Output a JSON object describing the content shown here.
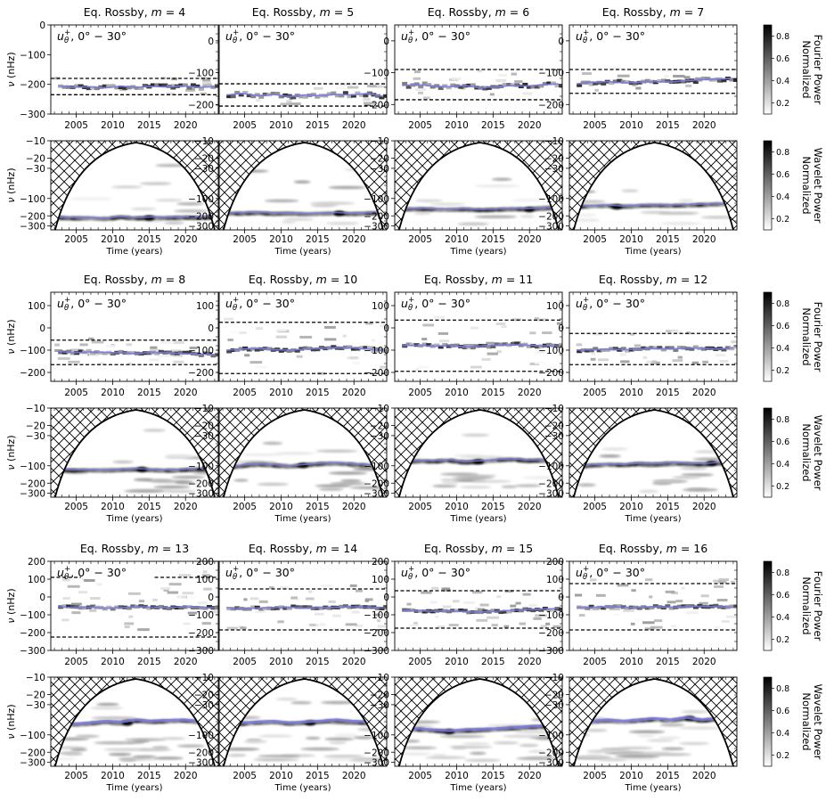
{
  "figure": {
    "panel_title_prefix": "Eq. Rossby, ",
    "m_symbol": "m",
    "m_equals": " = ",
    "inset_label": "u",
    "inset_sub": "θ",
    "inset_sup": "+",
    "inset_range": ", 0° − 30°",
    "ylabel": "ν (nHz)",
    "xlabel": "Time (years)",
    "fourier_colorbar_label": [
      "Normalized",
      "Fourier Power"
    ],
    "wavelet_colorbar_label": [
      "Normalized",
      "Wavelet Power"
    ],
    "colorbar_ticks": [
      "0.8",
      "0.6",
      "0.4",
      "0.2"
    ],
    "colors": {
      "trace": "#7b7bea",
      "dashed": "#000000",
      "hatch": "#000000"
    }
  },
  "chart_data": [
    {
      "type": "heatmap",
      "row": 1,
      "x_ticks": [
        "2005",
        "2010",
        "2015",
        "2020"
      ],
      "xlim": [
        2001.5,
        2024.5
      ],
      "wavelet_y_ticks": [
        "−10",
        "−20",
        "−30",
        "−100",
        "−200",
        "−300"
      ],
      "colorbar_range": [
        0.1,
        0.9
      ],
      "panels": [
        {
          "m": "4",
          "fourier_y_ticks": [
            "0",
            "−100",
            "−200",
            "−300"
          ],
          "fourier_ylim": [
            -300,
            0
          ],
          "dashed": [
            -180,
            -235
          ],
          "trace": [
            -205,
            -210,
            -208,
            -212,
            -206,
            -210,
            -207,
            -209,
            -205,
            -210,
            -208
          ],
          "wavelet_trace": [
            -210,
            -215,
            -212,
            -220,
            -205,
            -215,
            -210,
            -212,
            -208,
            -210,
            -206
          ],
          "wavelet_blob_year": 2015
        },
        {
          "m": "5",
          "fourier_y_ticks": [
            "0",
            "−100",
            "−200"
          ],
          "fourier_ylim": [
            -230,
            50
          ],
          "dashed": [
            -135,
            -205
          ],
          "trace": [
            -170,
            -165,
            -172,
            -168,
            -175,
            -170,
            -172,
            -168,
            -170,
            -165,
            -175
          ],
          "wavelet_trace": [
            -175,
            -178,
            -172,
            -180,
            -176,
            -182,
            -178,
            -175,
            -180,
            -176,
            -174
          ],
          "wavelet_blob_year": 2018
        },
        {
          "m": "6",
          "fourier_y_ticks": [
            "0",
            "−100",
            "−200"
          ],
          "fourier_ylim": [
            -230,
            50
          ],
          "dashed": [
            -90,
            -185
          ],
          "trace": [
            -140,
            -138,
            -142,
            -145,
            -140,
            -148,
            -145,
            -140,
            -142,
            -138,
            -135
          ],
          "wavelet_trace": [
            -150,
            -148,
            -150,
            -152,
            -150,
            -155,
            -152,
            -148,
            -150,
            -145,
            -140
          ],
          "wavelet_blob_year": 2020
        },
        {
          "m": "7",
          "fourier_y_ticks": [
            "0",
            "−100",
            "−200"
          ],
          "fourier_ylim": [
            -230,
            50
          ],
          "dashed": [
            -90,
            -165
          ],
          "trace": [
            -135,
            -130,
            -128,
            -132,
            -130,
            -128,
            -130,
            -125,
            -122,
            -120,
            -118
          ],
          "wavelet_trace": [
            -135,
            -132,
            -130,
            -135,
            -130,
            -128,
            -130,
            -128,
            -125,
            -122,
            -120
          ],
          "wavelet_blob_year": 2008
        }
      ]
    },
    {
      "type": "heatmap",
      "row": 2,
      "x_ticks": [
        "2005",
        "2010",
        "2015",
        "2020"
      ],
      "xlim": [
        2001.5,
        2024.5
      ],
      "wavelet_y_ticks": [
        "−10",
        "−20",
        "−30",
        "−100",
        "−200",
        "−300"
      ],
      "colorbar_range": [
        0.1,
        0.9
      ],
      "panels": [
        {
          "m": "8",
          "fourier_y_ticks": [
            "100",
            "0",
            "−100",
            "−200"
          ],
          "fourier_ylim": [
            -240,
            160
          ],
          "dashed": [
            -55,
            -165
          ],
          "trace": [
            -105,
            -112,
            -108,
            -110,
            -112,
            -115,
            -110,
            -112,
            -115,
            -118,
            -120
          ],
          "wavelet_trace": [
            -115,
            -118,
            -116,
            -118,
            -115,
            -112,
            -115,
            -118,
            -115,
            -112,
            -115
          ],
          "wavelet_blob_year": 2014
        },
        {
          "m": "10",
          "fourier_y_ticks": [
            "100",
            "0",
            "−100",
            "−200"
          ],
          "fourier_ylim": [
            -240,
            160
          ],
          "dashed": [
            25,
            -205
          ],
          "trace": [
            -100,
            -95,
            -92,
            -98,
            -100,
            -95,
            -92,
            -88,
            -90,
            -95,
            -100
          ],
          "wavelet_trace": [
            -105,
            -98,
            -92,
            -96,
            -100,
            -95,
            -90,
            -88,
            -92,
            -96,
            -98
          ],
          "wavelet_blob_year": 2013
        },
        {
          "m": "11",
          "fourier_y_ticks": [
            "100",
            "0",
            "−100",
            "−200"
          ],
          "fourier_ylim": [
            -240,
            160
          ],
          "dashed": [
            35,
            -195
          ],
          "trace": [
            -80,
            -78,
            -82,
            -80,
            -85,
            -82,
            -78,
            -75,
            -78,
            -80,
            -82
          ],
          "wavelet_trace": [
            -85,
            -80,
            -82,
            -78,
            -85,
            -82,
            -78,
            -75,
            -80,
            -78,
            -82
          ],
          "wavelet_blob_year": 2013
        },
        {
          "m": "12",
          "fourier_y_ticks": [
            "100",
            "0",
            "−100",
            "−200"
          ],
          "fourier_ylim": [
            -240,
            160
          ],
          "dashed": [
            -25,
            -165
          ],
          "trace": [
            -100,
            -98,
            -95,
            -98,
            -95,
            -92,
            -95,
            -90,
            -92,
            -95,
            -90
          ],
          "wavelet_trace": [
            -100,
            -96,
            -92,
            -95,
            -90,
            -92,
            -88,
            -90,
            -92,
            -88,
            -90
          ],
          "wavelet_blob_year": 2021
        }
      ]
    },
    {
      "type": "heatmap",
      "row": 3,
      "x_ticks": [
        "2005",
        "2010",
        "2015",
        "2020"
      ],
      "xlim": [
        2001.5,
        2024.5
      ],
      "wavelet_y_ticks": [
        "−10",
        "−20",
        "−30",
        "−100",
        "−200",
        "−300"
      ],
      "colorbar_range": [
        0.1,
        0.9
      ],
      "panels": [
        {
          "m": "13",
          "fourier_y_ticks": [
            "200",
            "100",
            "0",
            "−100",
            "−200",
            "−300"
          ],
          "fourier_ylim": [
            -300,
            200
          ],
          "dashed_left": 110,
          "dashed_right": 110,
          "dashed": [
            110,
            -225
          ],
          "trace": [
            -55,
            -60,
            -58,
            -62,
            -60,
            -55,
            -58,
            -60,
            -55,
            -58,
            -62
          ],
          "wavelet_trace": [
            -60,
            -65,
            -62,
            -58,
            -60,
            -55,
            -58,
            -56,
            -55,
            -58,
            -60
          ],
          "wavelet_blob_year": 2012
        },
        {
          "m": "14",
          "fourier_y_ticks": [
            "200",
            "100",
            "0",
            "−100",
            "−200",
            "−300"
          ],
          "fourier_ylim": [
            -300,
            200
          ],
          "dashed": [
            45,
            -185
          ],
          "trace": [
            -60,
            -65,
            -62,
            -60,
            -58,
            -62,
            -60,
            -58,
            -55,
            -58,
            -60
          ],
          "wavelet_trace": [
            -65,
            -62,
            -60,
            -58,
            -62,
            -60,
            -58,
            -55,
            -58,
            -60,
            -62
          ],
          "wavelet_blob_year": 2014
        },
        {
          "m": "15",
          "fourier_y_ticks": [
            "200",
            "100",
            "0",
            "−100",
            "−200",
            "−300"
          ],
          "fourier_ylim": [
            -300,
            200
          ],
          "dashed": [
            35,
            -175
          ],
          "trace": [
            -75,
            -78,
            -80,
            -78,
            -82,
            -85,
            -80,
            -75,
            -70,
            -68,
            -65
          ],
          "wavelet_trace": [
            -80,
            -78,
            -82,
            -85,
            -82,
            -80,
            -78,
            -75,
            -72,
            -70,
            -68
          ],
          "wavelet_blob_year": 2009
        },
        {
          "m": "16",
          "fourier_y_ticks": [
            "200",
            "100",
            "0",
            "−100",
            "−200",
            "−300"
          ],
          "fourier_ylim": [
            -300,
            200
          ],
          "dashed": [
            75,
            -185
          ],
          "trace": [
            -60,
            -58,
            -55,
            -58,
            -60,
            -55,
            -58,
            -55,
            -52,
            -55,
            -58
          ],
          "wavelet_trace": [
            -62,
            -58,
            -55,
            -58,
            -55,
            -52,
            -55,
            -50,
            -55,
            -52,
            -58
          ],
          "wavelet_blob_year": 2018
        }
      ]
    }
  ]
}
